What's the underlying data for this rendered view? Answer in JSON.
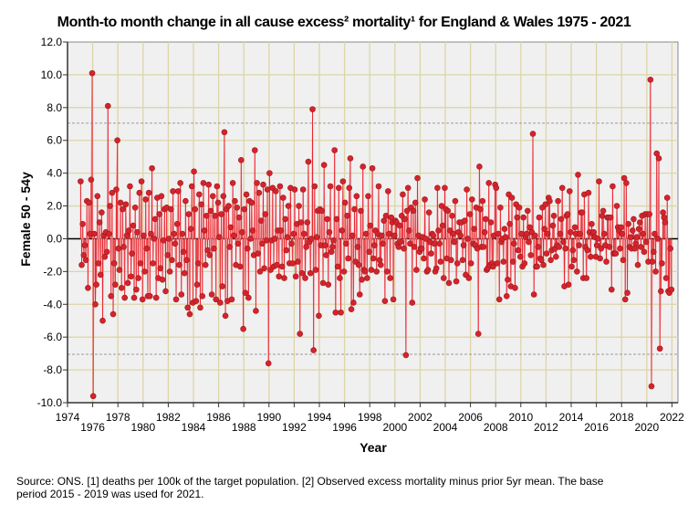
{
  "chart_data": {
    "type": "line",
    "title": "Month-to month change in all cause excess² mortality¹  for England & Wales 1975 - 2021",
    "xlabel": "Year",
    "ylabel": "Female 50 - 54y",
    "xlim": [
      1974,
      2022.5
    ],
    "ylim": [
      -10,
      12
    ],
    "x_ticks": [
      1974,
      1976,
      1978,
      1980,
      1982,
      1984,
      1986,
      1988,
      1990,
      1992,
      1994,
      1996,
      1998,
      2000,
      2002,
      2004,
      2006,
      2008,
      2010,
      2012,
      2014,
      2016,
      2018,
      2020,
      2022
    ],
    "y_ticks": [
      "12.0",
      "10.0",
      "8.0",
      "6.0",
      "4.0",
      "2.0",
      "0.0",
      "-2.0",
      "-4.0",
      "-6.0",
      "-8.0",
      "-10.0"
    ],
    "grid": true,
    "reference_lines": [
      7.05,
      -7.05,
      0
    ],
    "start": {
      "year": 1975,
      "month": 1
    },
    "frequency": "monthly",
    "values": [
      3.5,
      -1.6,
      0.9,
      -1.0,
      -0.4,
      -1.3,
      2.3,
      -3.0,
      2.2,
      0.3,
      3.6,
      10.1,
      -9.6,
      0.3,
      -4.0,
      -2.8,
      2.6,
      -1.5,
      1.0,
      -2.2,
      1.6,
      -5.0,
      0.2,
      -1.1,
      0.4,
      -0.8,
      8.1,
      0.3,
      2.0,
      -3.5,
      2.8,
      -4.6,
      -1.5,
      -2.8,
      3.0,
      6.0,
      -0.6,
      -1.9,
      2.2,
      -3.0,
      1.8,
      -0.5,
      -3.6,
      2.1,
      0.2,
      -2.7,
      0.5,
      3.2,
      -2.3,
      -0.9,
      0.8,
      -3.6,
      1.9,
      -3.1,
      0.4,
      -2.4,
      2.8,
      -1.5,
      3.5,
      -3.7,
      0.2,
      -2.0,
      2.4,
      -0.6,
      -3.5,
      2.8,
      -3.5,
      0.3,
      4.3,
      -1.5,
      0.0,
      1.2,
      -3.6,
      2.5,
      -2.4,
      1.5,
      -1.8,
      2.6,
      -2.5,
      -0.1,
      1.8,
      -3.2,
      1.9,
      -1.0,
      0.0,
      -2.0,
      1.8,
      -1.3,
      2.9,
      0.3,
      -0.3,
      -3.7,
      0.9,
      2.9,
      -1.6,
      3.4,
      -3.4,
      0.3,
      -0.8,
      -2.1,
      2.3,
      -1.3,
      -4.2,
      1.5,
      -4.6,
      0.6,
      3.2,
      -3.9,
      4.1,
      1.8,
      -3.8,
      -2.8,
      -1.5,
      2.7,
      -4.2,
      2.1,
      -3.5,
      3.4,
      0.5,
      -1.6,
      1.4,
      -0.7,
      3.3,
      -1.0,
      1.7,
      -3.4,
      2.6,
      -0.6,
      1.4,
      -3.7,
      3.2,
      2.2,
      0.1,
      -3.9,
      1.5,
      -2.9,
      2.6,
      6.5,
      -4.7,
      1.8,
      -3.8,
      2.0,
      -0.5,
      0.7,
      -3.7,
      3.4,
      0.2,
      2.3,
      -1.6,
      1.9,
      -0.3,
      1.3,
      -1.7,
      4.8,
      0.4,
      -5.5,
      1.8,
      -3.3,
      2.7,
      -0.6,
      -3.6,
      2.3,
      0.0,
      2.2,
      0.5,
      -1.0,
      5.4,
      -4.4,
      3.4,
      -0.9,
      2.8,
      -2.0,
      1.1,
      -0.3,
      3.3,
      -1.8,
      1.5,
      -0.1,
      3.0,
      -7.6,
      4.0,
      -1.9,
      -0.1,
      3.1,
      -1.7,
      0.0,
      2.9,
      -1.6,
      0.5,
      -2.3,
      3.2,
      0.5,
      -1.7,
      2.5,
      -2.4,
      1.2,
      -0.7,
      0.1,
      2.0,
      -1.5,
      3.1,
      -0.3,
      -1.5,
      0.3,
      3.0,
      -2.3,
      0.9,
      -1.4,
      2.0,
      -5.8,
      1.0,
      -2.1,
      3.0,
      0.3,
      -2.4,
      -0.5,
      1.0,
      4.7,
      -0.2,
      -2.1,
      0.0,
      7.9,
      -6.8,
      3.2,
      -1.9,
      0.1,
      1.7,
      -4.7,
      1.8,
      -0.4,
      1.7,
      -2.7,
      4.5,
      -0.4,
      -1.0,
      1.2,
      -2.8,
      0.4,
      3.2,
      -0.8,
      -0.5,
      -0.1,
      5.4,
      -4.5,
      1.2,
      -1.7,
      3.1,
      -2.4,
      -4.5,
      0.5,
      3.5,
      -2.0,
      2.2,
      -0.3,
      1.4,
      -1.2,
      3.1,
      4.9,
      -4.3,
      0.2,
      -3.9,
      1.8,
      -1.4,
      2.6,
      -0.5,
      -1.6,
      -3.4,
      1.7,
      -2.5,
      4.4,
      -1.9,
      -2.0,
      0.3,
      -2.4,
      2.6,
      -0.8,
      0.8,
      -1.9,
      4.3,
      -1.2,
      -0.4,
      0.5,
      -2.0,
      0.3,
      3.2,
      -1.3,
      -1.6,
      0.2,
      -0.3,
      1.1,
      -3.8,
      1.4,
      -2.0,
      2.9,
      0.3,
      -2.4,
      1.3,
      1.0,
      -3.7,
      0.2,
      1.1,
      1.0,
      -0.3,
      -0.5,
      0.8,
      -0.2,
      1.4,
      2.7,
      -0.6,
      1.2,
      -7.1,
      1.7,
      3.1,
      0.5,
      -0.3,
      1.9,
      -3.9,
      1.7,
      -0.5,
      2.2,
      -1.9,
      3.7,
      0.2,
      -0.8,
      -0.6,
      -0.6,
      0.1,
      -1.2,
      2.4,
      0.0,
      -2.0,
      -1.9,
      1.6,
      -0.2,
      -0.9,
      0.3,
      0.2,
      -0.3,
      -2.0,
      -1.8,
      3.1,
      0.5,
      -0.3,
      -1.4,
      2.0,
      0.8,
      -2.4,
      3.1,
      1.8,
      -1.2,
      1.7,
      -2.7,
      0.5,
      -1.3,
      1.4,
      0.3,
      -0.2,
      2.3,
      -2.6,
      -1.5,
      0.4,
      1.0,
      0.2,
      1.0,
      -1.3,
      -0.4,
      1.1,
      -2.2,
      3.0,
      0.0,
      -2.4,
      1.5,
      -1.5,
      2.4,
      -0.3,
      0.6,
      -0.4,
      1.9,
      -0.6,
      -5.8,
      4.4,
      1.8,
      -0.5,
      2.3,
      -0.5,
      0.4,
      1.2,
      -1.9,
      -1.8,
      3.4,
      -1.6,
      1.0,
      -1.5,
      -1.7,
      0.2,
      3.3,
      3.1,
      -1.5,
      0.3,
      -3.7,
      1.9,
      -0.2,
      0.0,
      -1.4,
      0.6,
      0.1,
      -3.5,
      -2.5,
      2.7,
      0.9,
      -2.9,
      2.5,
      -1.4,
      -0.3,
      -3.0,
      2.1,
      1.3,
      -0.7,
      1.9,
      -1.1,
      0.3,
      -1.7,
      1.3,
      -1.5,
      0.1,
      0.3,
      1.7,
      -0.2,
      0.7,
      -1.0,
      0.4,
      6.4,
      -3.4,
      0.2,
      -1.7,
      -1.7,
      -0.5,
      1.3,
      -1.2,
      -1.3,
      1.9,
      -1.6,
      0.6,
      2.1,
      -0.9,
      0.3,
      2.5,
      2.3,
      -1.3,
      -0.7,
      0.8,
      1.4,
      -0.6,
      -1.1,
      -0.4,
      2.3,
      -0.5,
      0.3,
      1.2,
      3.1,
      -0.2,
      -2.9,
      -0.6,
      1.4,
      1.5,
      -2.8,
      2.9,
      0.4,
      -1.7,
      -0.7,
      -1.3,
      0.7,
      0.3,
      -2.0,
      3.9,
      -0.4,
      0.3,
      1.6,
      1.6,
      -2.4,
      2.7,
      -0.5,
      -2.4,
      -0.7,
      2.8,
      0.4,
      -1.1,
      0.9,
      0.3,
      0.4,
      0.1,
      -1.1,
      -0.4,
      0.0,
      3.5,
      -1.2,
      -0.6,
      1.4,
      1.7,
      0.3,
      -0.4,
      -1.4,
      1.3,
      1.3,
      -0.5,
      1.3,
      -3.1,
      3.2,
      -0.9,
      -0.9,
      -0.9,
      2.0,
      0.7,
      0.5,
      -0.6,
      0.7,
      0.3,
      -1.3,
      3.7,
      -3.7,
      3.4,
      -3.3,
      0.9,
      -0.5,
      0.1,
      -0.6,
      0.5,
      1.2,
      -0.6,
      -0.3,
      0.1,
      -1.6,
      0.6,
      1.0,
      -0.5,
      1.4,
      0.3,
      -0.8,
      1.5,
      -0.2,
      1.5,
      -1.4,
      1.5,
      9.7,
      -9.0,
      -1.4,
      -0.8,
      0.3,
      -2.0,
      5.2,
      0.0,
      4.9,
      -6.7,
      -3.2,
      -1.5,
      1.6,
      1.3,
      1.0,
      -2.4,
      2.5,
      -3.2,
      -3.3,
      -0.6,
      -3.1
    ]
  },
  "source_note_line1": "Source: ONS. [1] deaths per 100k of the target population. [2] Observed excess mortality minus prior 5yr mean. The base",
  "source_note_line2": "period 2015 - 2019 was used for 2021.",
  "colors": {
    "plot_bg": "#f0f0f0",
    "grid": "#dcd5a8",
    "stem": "#e8242c",
    "connector": "#f3a3a6",
    "marker": "#d6232b",
    "marker_edge": "#9a1a1e",
    "reference": "#9a9a9a"
  }
}
